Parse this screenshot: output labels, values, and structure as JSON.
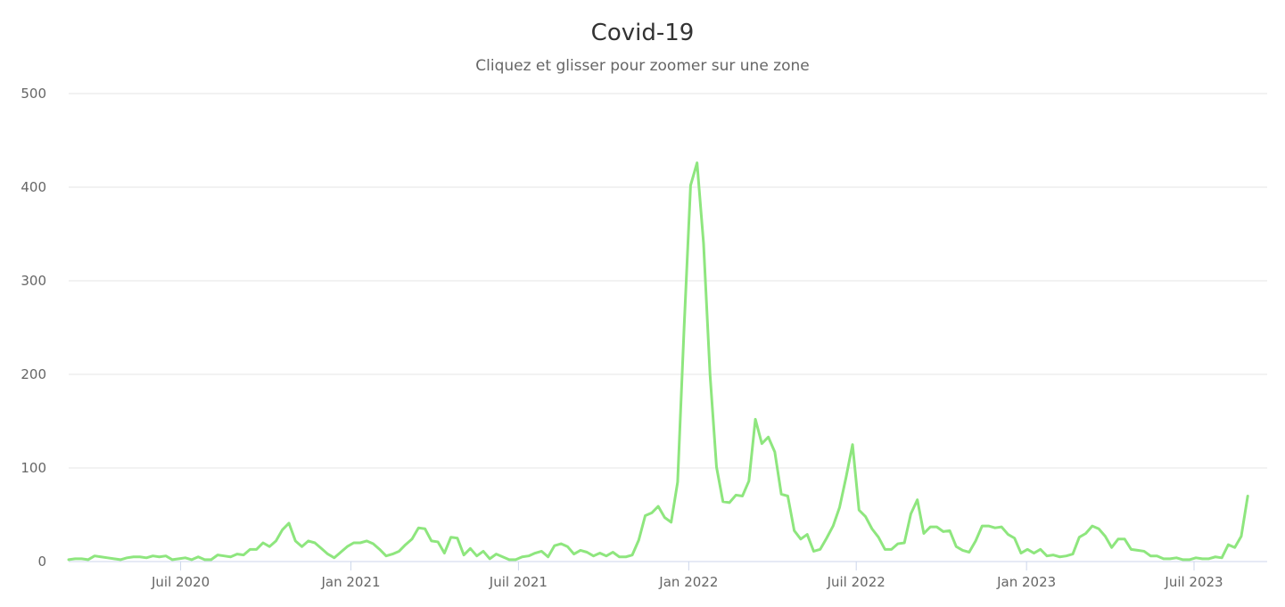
{
  "chart_data": {
    "type": "line",
    "title": "Covid-19",
    "subtitle": "Cliquez et glisser pour zoomer sur une zone",
    "xlabel": "",
    "ylabel": "",
    "ylim": [
      0,
      500
    ],
    "y_ticks": [
      0,
      100,
      200,
      300,
      400,
      500
    ],
    "x_range": [
      "2020-03-02",
      "2023-09-18"
    ],
    "x_ticks": [
      {
        "date": "2020-07-01",
        "label": "Juil 2020"
      },
      {
        "date": "2021-01-01",
        "label": "Jan 2021"
      },
      {
        "date": "2021-07-01",
        "label": "Juil 2021"
      },
      {
        "date": "2022-01-01",
        "label": "Jan 2022"
      },
      {
        "date": "2022-07-01",
        "label": "Juil 2022"
      },
      {
        "date": "2023-01-01",
        "label": "Jan 2023"
      },
      {
        "date": "2023-07-01",
        "label": "Juil 2023"
      }
    ],
    "grid": true,
    "legend": "none",
    "color": "#8ee67e",
    "series": [
      {
        "start_date": "2020-03-02",
        "interval": "weekly",
        "values": [
          2,
          3,
          3,
          2,
          6,
          5,
          4,
          3,
          2,
          4,
          5,
          5,
          4,
          6,
          5,
          6,
          2,
          3,
          4,
          2,
          5,
          2,
          2,
          7,
          6,
          5,
          8,
          7,
          13,
          13,
          20,
          16,
          22,
          34,
          41,
          22,
          16,
          22,
          20,
          14,
          8,
          4,
          10,
          16,
          20,
          20,
          22,
          19,
          13,
          6,
          8,
          11,
          18,
          24,
          36,
          35,
          22,
          21,
          9,
          26,
          25,
          7,
          14,
          6,
          11,
          3,
          8,
          5,
          2,
          2,
          5,
          6,
          9,
          11,
          5,
          17,
          19,
          16,
          8,
          12,
          10,
          6,
          9,
          6,
          10,
          5,
          5,
          7,
          23,
          49,
          52,
          59,
          47,
          42,
          85,
          250,
          402,
          426,
          340,
          200,
          101,
          64,
          63,
          71,
          70,
          86,
          152,
          126,
          133,
          117,
          72,
          70,
          33,
          24,
          29,
          11,
          13,
          25,
          38,
          58,
          90,
          125,
          55,
          48,
          35,
          26,
          13,
          13,
          19,
          20,
          51,
          66,
          30,
          37,
          37,
          32,
          33,
          16,
          12,
          10,
          22,
          38,
          38,
          36,
          37,
          29,
          25,
          9,
          13,
          9,
          13,
          6,
          7,
          5,
          6,
          8,
          26,
          30,
          38,
          35,
          27,
          15,
          24,
          24,
          13,
          12,
          11,
          6,
          6,
          3,
          3,
          4,
          2,
          2,
          4,
          3,
          3,
          5,
          4,
          18,
          15,
          27,
          70
        ]
      }
    ]
  }
}
